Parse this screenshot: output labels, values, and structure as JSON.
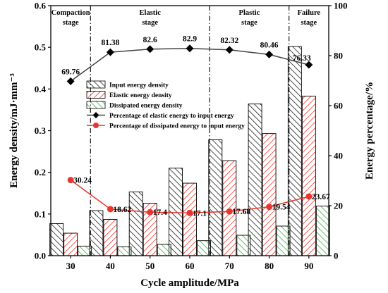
{
  "chart_data": {
    "type": "bar",
    "categories": [
      "30",
      "40",
      "50",
      "60",
      "70",
      "80",
      "90"
    ],
    "xlabel": "Cycle amplitude/MPa",
    "ylabel": "Energy density/mJ·mm⁻³",
    "y2label": "Energy percentage/%",
    "ylim": [
      0,
      0.6
    ],
    "y2lim": [
      0,
      100
    ],
    "yticks": [
      "0.0",
      "0.1",
      "0.2",
      "0.3",
      "0.4",
      "0.5",
      "0.6"
    ],
    "y2ticks": [
      "0",
      "20",
      "40",
      "60",
      "80",
      "100"
    ],
    "grid": false,
    "legend_position": "center",
    "stages": [
      {
        "label_lines": [
          "Compaction",
          "stage"
        ],
        "from": 0,
        "to": 0
      },
      {
        "label_lines": [
          "Elastic",
          "stage"
        ],
        "from": 1,
        "to": 3
      },
      {
        "label_lines": [
          "Plastic",
          "stage"
        ],
        "from": 4,
        "to": 5
      },
      {
        "label_lines": [
          "Failure",
          "stage"
        ],
        "from": 6,
        "to": 6
      }
    ],
    "bar_series": [
      {
        "name": "Input energy density",
        "pattern": "hatch-black",
        "values": [
          0.077,
          0.108,
          0.153,
          0.21,
          0.278,
          0.364,
          0.502
        ]
      },
      {
        "name": "Elastic energy density",
        "pattern": "hatch-red",
        "values": [
          0.054,
          0.087,
          0.126,
          0.174,
          0.228,
          0.293,
          0.383
        ]
      },
      {
        "name": "Dissipated energy density",
        "pattern": "hatch-green",
        "values": [
          0.023,
          0.021,
          0.027,
          0.036,
          0.049,
          0.071,
          0.119
        ]
      }
    ],
    "line_series": [
      {
        "name": "Percentage of elastic energy to input energy",
        "color": "#000000",
        "marker": "diamond",
        "values": [
          69.76,
          81.38,
          82.6,
          82.9,
          82.32,
          80.46,
          76.33
        ]
      },
      {
        "name": "Percentage of dissipated energy to input energy",
        "color": "#e8352e",
        "marker": "circle",
        "values": [
          30.24,
          18.62,
          17.4,
          17.1,
          17.68,
          19.54,
          23.67
        ]
      }
    ],
    "colors": {
      "elastic_hatch": "#e8352e",
      "dissipated_hatch": "#3cb043",
      "dissipated_line": "#e8352e",
      "elastic_line": "#000000"
    }
  }
}
